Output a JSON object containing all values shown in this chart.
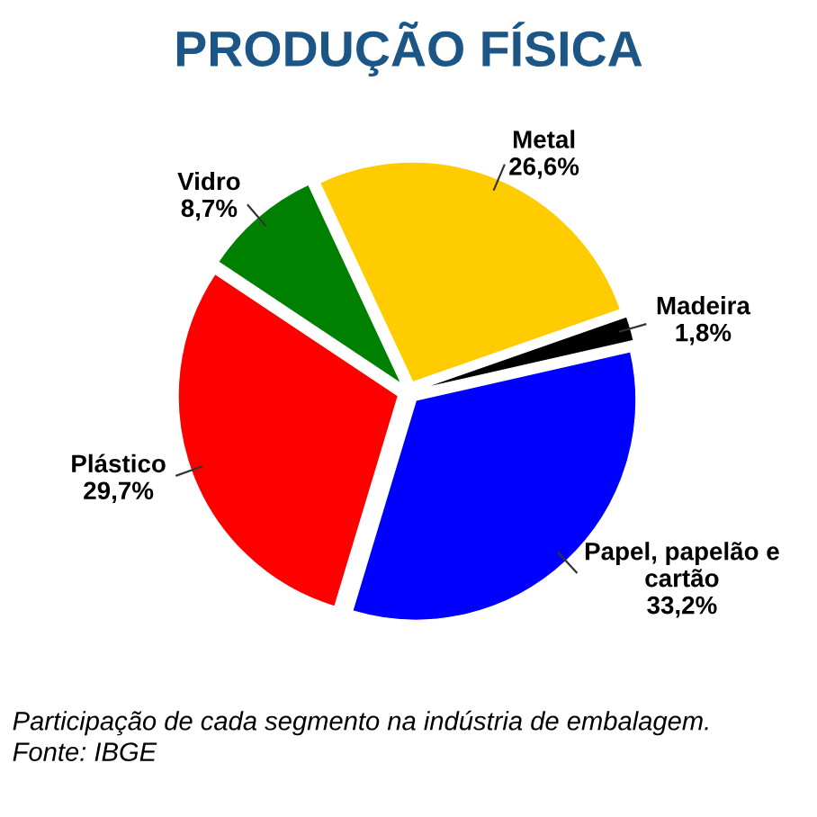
{
  "chart_data": {
    "type": "pie",
    "title": "PRODUÇÃO FÍSICA",
    "categories": [
      "Metal",
      "Madeira",
      "Papel, papelão e\ncartão",
      "Plástico",
      "Vidro"
    ],
    "values": [
      26.6,
      1.8,
      33.2,
      29.7,
      8.7
    ],
    "value_labels": [
      "26,6%",
      "1,8%",
      "33,2%",
      "29,7%",
      "8,7%"
    ],
    "colors": [
      "#ffcc00",
      "#000000",
      "#0000ff",
      "#ff0000",
      "#008000"
    ],
    "legend": false,
    "annotations": [
      "Participação de cada segmento na indústria de embalagem.",
      "Fonte: IBGE"
    ]
  }
}
